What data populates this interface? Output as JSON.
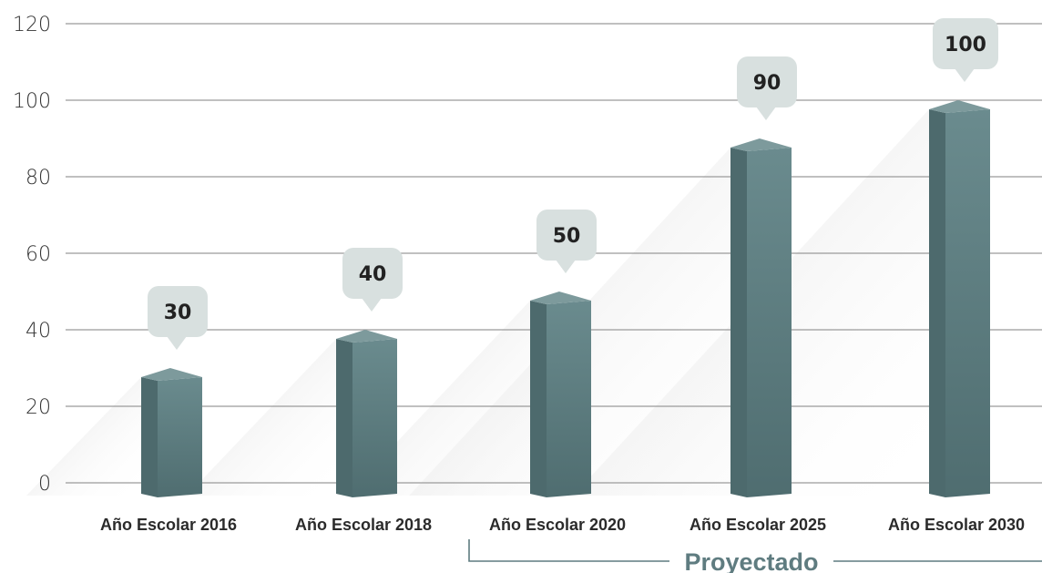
{
  "chart_data": {
    "type": "bar",
    "categories": [
      "Año Escolar 2016",
      "Año Escolar 2018",
      "Año Escolar 2020",
      "Año Escolar 2025",
      "Año Escolar 2030"
    ],
    "values": [
      30,
      40,
      50,
      90,
      100
    ],
    "value_labels": [
      "30",
      "40",
      "50",
      "90",
      "100"
    ],
    "yticks": [
      0,
      20,
      40,
      60,
      80,
      100,
      120
    ],
    "ytick_labels": [
      "0",
      "20",
      "40",
      "60",
      "80",
      "100",
      "120"
    ],
    "ylim": [
      0,
      120
    ],
    "grid": true,
    "annotation": {
      "text": "Proyectado",
      "applies_to": [
        "Año Escolar 2020",
        "Año Escolar 2025",
        "Año Escolar 2030"
      ]
    },
    "colors": {
      "bar_front": "#5f8083",
      "bar_side": "#4d6a6d",
      "bar_top": "#7d9a9c",
      "callout": "#d8e0df",
      "gridline": "#9a9a9a",
      "annotation": "#5f7c80"
    }
  }
}
